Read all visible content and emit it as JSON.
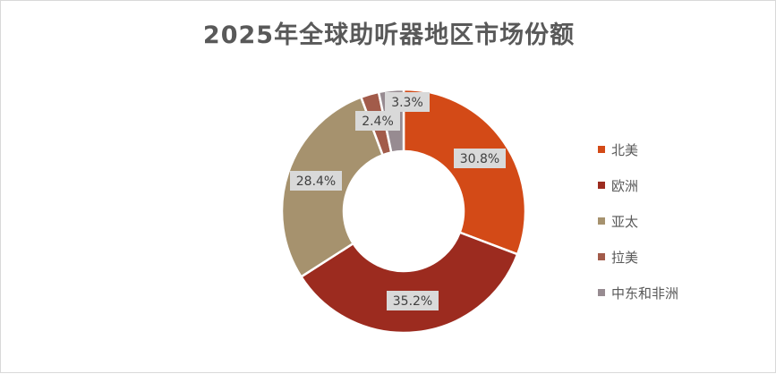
{
  "chart_data": {
    "type": "pie",
    "variant": "doughnut",
    "title": "2025年全球助听器地区市场份额",
    "categories": [
      "北美",
      "欧洲",
      "亚太",
      "拉美",
      "中东和非洲"
    ],
    "values": [
      30.8,
      35.2,
      28.4,
      2.4,
      3.3
    ],
    "data_labels": [
      "30.8%",
      "35.2%",
      "28.4%",
      "2.4%",
      "3.3%"
    ],
    "colors": [
      "#D34A17",
      "#9C2B1F",
      "#A6926E",
      "#A25B4A",
      "#978B91"
    ],
    "legend_position": "right"
  }
}
